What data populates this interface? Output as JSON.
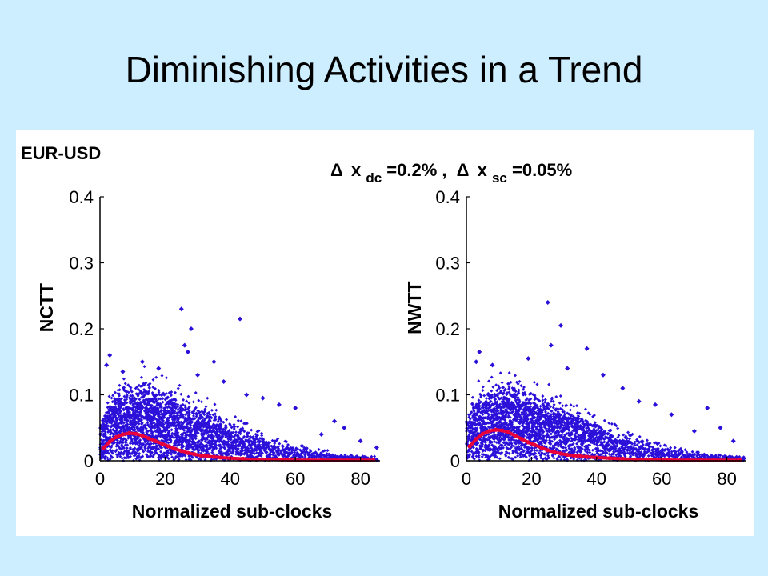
{
  "slide": {
    "title": "Diminishing Activities in a Trend",
    "background": "#cdeeff"
  },
  "figure": {
    "pair_label": "EUR-USD",
    "annotation": {
      "symbol": "Δ",
      "var": "x",
      "sub_dc": "dc",
      "eq_dc": "=0.2% ,",
      "sub_sc": "sc",
      "eq_sc": "=0.05%"
    }
  },
  "chart_data": [
    {
      "type": "scatter",
      "xlabel": "Normalized sub-clocks",
      "ylabel": "NCTT",
      "xlim": [
        0,
        86
      ],
      "ylim": [
        0,
        0.4
      ],
      "xticks": [
        0,
        20,
        40,
        60,
        80
      ],
      "yticks": [
        0,
        0.1,
        0.2,
        0.3,
        0.4
      ],
      "ytick_labels": [
        "0",
        "0.1",
        "0.2",
        "0.3",
        "0.4"
      ],
      "grid": false,
      "scatter_color": "#2a10d8",
      "scatter_envelope": {
        "x": [
          0,
          2,
          5,
          10,
          15,
          20,
          25,
          30,
          35,
          40,
          45,
          50,
          55,
          60,
          65,
          70,
          75,
          80,
          85
        ],
        "y_typical_max": [
          0.06,
          0.08,
          0.1,
          0.11,
          0.11,
          0.1,
          0.09,
          0.08,
          0.07,
          0.055,
          0.045,
          0.035,
          0.025,
          0.02,
          0.015,
          0.012,
          0.008,
          0.006,
          0.005
        ]
      },
      "outliers": [
        {
          "x": 3,
          "y": 0.16
        },
        {
          "x": 2,
          "y": 0.145
        },
        {
          "x": 7,
          "y": 0.135
        },
        {
          "x": 13,
          "y": 0.15
        },
        {
          "x": 18,
          "y": 0.14
        },
        {
          "x": 25,
          "y": 0.23
        },
        {
          "x": 28,
          "y": 0.2
        },
        {
          "x": 26,
          "y": 0.175
        },
        {
          "x": 27,
          "y": 0.165
        },
        {
          "x": 35,
          "y": 0.15
        },
        {
          "x": 43,
          "y": 0.215
        },
        {
          "x": 30,
          "y": 0.13
        },
        {
          "x": 38,
          "y": 0.12
        },
        {
          "x": 45,
          "y": 0.1
        },
        {
          "x": 50,
          "y": 0.095
        },
        {
          "x": 55,
          "y": 0.085
        },
        {
          "x": 60,
          "y": 0.08
        },
        {
          "x": 72,
          "y": 0.06
        },
        {
          "x": 75,
          "y": 0.05
        },
        {
          "x": 68,
          "y": 0.04
        },
        {
          "x": 80,
          "y": 0.03
        },
        {
          "x": 85,
          "y": 0.02
        }
      ],
      "mean_series": {
        "color": "#e8003a",
        "x": [
          1,
          3,
          5,
          7,
          9,
          11,
          13,
          15,
          17,
          19,
          21,
          23,
          25,
          27,
          29,
          31,
          33,
          35,
          37,
          40,
          44,
          48,
          52,
          56,
          60,
          64,
          68,
          72,
          76,
          80,
          84
        ],
        "y": [
          0.019,
          0.029,
          0.036,
          0.04,
          0.042,
          0.041,
          0.038,
          0.034,
          0.03,
          0.026,
          0.022,
          0.018,
          0.015,
          0.012,
          0.01,
          0.008,
          0.007,
          0.006,
          0.005,
          0.004,
          0.003,
          0.002,
          0.002,
          0.0015,
          0.001,
          0.001,
          0.001,
          0.001,
          0.001,
          0.001,
          0.001
        ]
      }
    },
    {
      "type": "scatter",
      "xlabel": "Normalized sub-clocks",
      "ylabel": "NWTT",
      "xlim": [
        0,
        86
      ],
      "ylim": [
        0,
        0.4
      ],
      "xticks": [
        0,
        20,
        40,
        60,
        80
      ],
      "yticks": [
        0,
        0.1,
        0.2,
        0.3,
        0.4
      ],
      "ytick_labels": [
        "0",
        "0.1",
        "0.2",
        "0.3",
        "0.4"
      ],
      "grid": false,
      "scatter_color": "#2a10d8",
      "scatter_envelope": {
        "x": [
          0,
          2,
          5,
          10,
          15,
          20,
          25,
          30,
          35,
          40,
          45,
          50,
          55,
          60,
          65,
          70,
          75,
          80,
          85
        ],
        "y_typical_max": [
          0.06,
          0.085,
          0.1,
          0.11,
          0.11,
          0.1,
          0.09,
          0.08,
          0.068,
          0.055,
          0.045,
          0.035,
          0.025,
          0.02,
          0.015,
          0.012,
          0.008,
          0.006,
          0.005
        ]
      },
      "outliers": [
        {
          "x": 4,
          "y": 0.165
        },
        {
          "x": 3,
          "y": 0.15
        },
        {
          "x": 8,
          "y": 0.145
        },
        {
          "x": 19,
          "y": 0.155
        },
        {
          "x": 25,
          "y": 0.24
        },
        {
          "x": 29,
          "y": 0.205
        },
        {
          "x": 26,
          "y": 0.175
        },
        {
          "x": 37,
          "y": 0.17
        },
        {
          "x": 31,
          "y": 0.14
        },
        {
          "x": 42,
          "y": 0.13
        },
        {
          "x": 48,
          "y": 0.11
        },
        {
          "x": 53,
          "y": 0.09
        },
        {
          "x": 58,
          "y": 0.085
        },
        {
          "x": 63,
          "y": 0.07
        },
        {
          "x": 74,
          "y": 0.08
        },
        {
          "x": 78,
          "y": 0.05
        },
        {
          "x": 82,
          "y": 0.03
        },
        {
          "x": 70,
          "y": 0.045
        }
      ],
      "mean_series": {
        "color": "#e8003a",
        "x": [
          1,
          3,
          5,
          7,
          9,
          11,
          13,
          15,
          17,
          19,
          21,
          23,
          25,
          27,
          29,
          31,
          33,
          35,
          37,
          40,
          44,
          48,
          52,
          56,
          60,
          64,
          68,
          72,
          76,
          80,
          84
        ],
        "y": [
          0.022,
          0.033,
          0.041,
          0.045,
          0.047,
          0.046,
          0.043,
          0.038,
          0.033,
          0.028,
          0.024,
          0.02,
          0.016,
          0.013,
          0.011,
          0.009,
          0.008,
          0.007,
          0.006,
          0.005,
          0.004,
          0.003,
          0.002,
          0.002,
          0.0015,
          0.001,
          0.001,
          0.001,
          0.001,
          0.001,
          0.001
        ]
      }
    }
  ]
}
